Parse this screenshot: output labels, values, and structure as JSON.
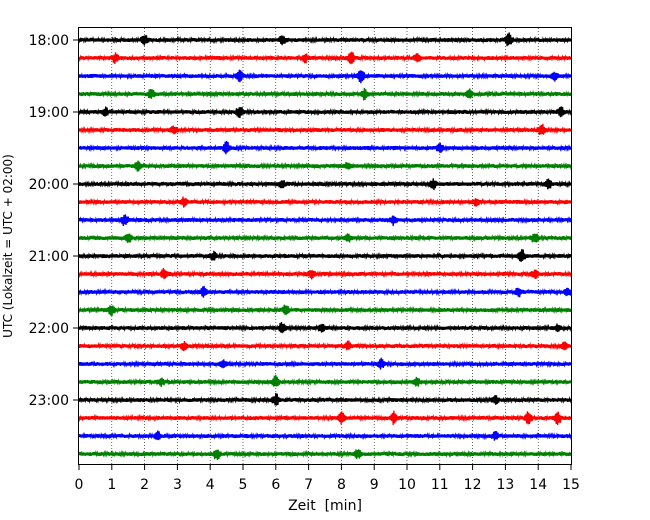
{
  "chart_data": {
    "type": "line",
    "title": "",
    "xlabel": "Zeit  [min]",
    "ylabel": "UTC (Lokalzeit = UTC + 02:00)",
    "xlim": [
      0,
      15
    ],
    "x_ticks": [
      "0",
      "1",
      "2",
      "3",
      "4",
      "5",
      "6",
      "7",
      "8",
      "9",
      "10",
      "11",
      "12",
      "13",
      "14",
      "15"
    ],
    "y_ticks": [
      "18:00",
      "19:00",
      "20:00",
      "21:00",
      "22:00",
      "23:00"
    ],
    "grid": "vertical dotted at each minute",
    "series_colors": [
      "#000000",
      "#ff0000",
      "#0000ff",
      "#008000"
    ],
    "traces": [
      {
        "start": "18:00",
        "color": "#000000",
        "bursts": [
          [
            2.0,
            0.8
          ],
          [
            6.2,
            0.6
          ],
          [
            13.1,
            1.0
          ]
        ]
      },
      {
        "start": "18:15",
        "color": "#ff0000",
        "bursts": [
          [
            1.1,
            0.7
          ],
          [
            6.9,
            0.6
          ],
          [
            8.3,
            1.0
          ],
          [
            10.3,
            0.6
          ]
        ]
      },
      {
        "start": "18:30",
        "color": "#0000ff",
        "bursts": [
          [
            4.9,
            0.8
          ],
          [
            8.6,
            1.0
          ],
          [
            14.5,
            0.6
          ]
        ]
      },
      {
        "start": "18:45",
        "color": "#008000",
        "bursts": [
          [
            2.2,
            0.7
          ],
          [
            8.7,
            0.8
          ],
          [
            11.9,
            0.6
          ]
        ]
      },
      {
        "start": "19:00",
        "color": "#000000",
        "bursts": [
          [
            0.8,
            0.7
          ],
          [
            4.9,
            1.0
          ],
          [
            14.7,
            0.8
          ]
        ]
      },
      {
        "start": "19:15",
        "color": "#ff0000",
        "bursts": [
          [
            2.9,
            0.6
          ],
          [
            14.1,
            1.0
          ]
        ]
      },
      {
        "start": "19:30",
        "color": "#0000ff",
        "bursts": [
          [
            4.5,
            1.0
          ],
          [
            11.0,
            0.7
          ]
        ]
      },
      {
        "start": "19:45",
        "color": "#008000",
        "bursts": [
          [
            1.8,
            0.7
          ],
          [
            8.2,
            0.6
          ]
        ]
      },
      {
        "start": "20:00",
        "color": "#000000",
        "bursts": [
          [
            6.2,
            0.7
          ],
          [
            10.8,
            0.7
          ],
          [
            14.3,
            0.8
          ]
        ]
      },
      {
        "start": "20:15",
        "color": "#ff0000",
        "bursts": [
          [
            3.2,
            0.7
          ],
          [
            12.1,
            0.6
          ]
        ]
      },
      {
        "start": "20:30",
        "color": "#0000ff",
        "bursts": [
          [
            1.4,
            1.0
          ],
          [
            9.6,
            0.7
          ]
        ]
      },
      {
        "start": "20:45",
        "color": "#008000",
        "bursts": [
          [
            1.5,
            0.7
          ],
          [
            8.2,
            0.6
          ],
          [
            13.9,
            0.9
          ]
        ]
      },
      {
        "start": "21:00",
        "color": "#000000",
        "bursts": [
          [
            4.1,
            0.6
          ],
          [
            13.5,
            1.0
          ]
        ]
      },
      {
        "start": "21:15",
        "color": "#ff0000",
        "bursts": [
          [
            2.6,
            1.0
          ],
          [
            7.1,
            0.7
          ],
          [
            13.9,
            0.6
          ]
        ]
      },
      {
        "start": "21:30",
        "color": "#0000ff",
        "bursts": [
          [
            3.8,
            0.7
          ],
          [
            13.4,
            0.8
          ],
          [
            14.9,
            0.6
          ]
        ]
      },
      {
        "start": "21:45",
        "color": "#008000",
        "bursts": [
          [
            1.0,
            0.8
          ],
          [
            6.3,
            0.7
          ]
        ]
      },
      {
        "start": "22:00",
        "color": "#000000",
        "bursts": [
          [
            6.2,
            0.9
          ],
          [
            7.4,
            0.6
          ],
          [
            14.6,
            0.6
          ]
        ]
      },
      {
        "start": "22:15",
        "color": "#ff0000",
        "bursts": [
          [
            3.2,
            0.6
          ],
          [
            8.2,
            0.6
          ],
          [
            14.8,
            0.6
          ]
        ]
      },
      {
        "start": "22:30",
        "color": "#0000ff",
        "bursts": [
          [
            4.4,
            0.6
          ],
          [
            9.2,
            0.8
          ]
        ]
      },
      {
        "start": "22:45",
        "color": "#008000",
        "bursts": [
          [
            2.5,
            0.6
          ],
          [
            6.0,
            1.0
          ],
          [
            10.3,
            0.7
          ]
        ]
      },
      {
        "start": "23:00",
        "color": "#000000",
        "bursts": [
          [
            6.0,
            1.0
          ],
          [
            12.7,
            0.6
          ]
        ]
      },
      {
        "start": "23:15",
        "color": "#ff0000",
        "bursts": [
          [
            8.0,
            0.9
          ],
          [
            9.6,
            0.9
          ],
          [
            13.7,
            1.0
          ],
          [
            14.6,
            1.0
          ]
        ]
      },
      {
        "start": "23:30",
        "color": "#0000ff",
        "bursts": [
          [
            2.4,
            0.6
          ],
          [
            12.7,
            0.6
          ]
        ]
      },
      {
        "start": "23:45",
        "color": "#008000",
        "bursts": [
          [
            4.2,
            0.9
          ],
          [
            8.5,
            0.7
          ]
        ]
      }
    ]
  }
}
